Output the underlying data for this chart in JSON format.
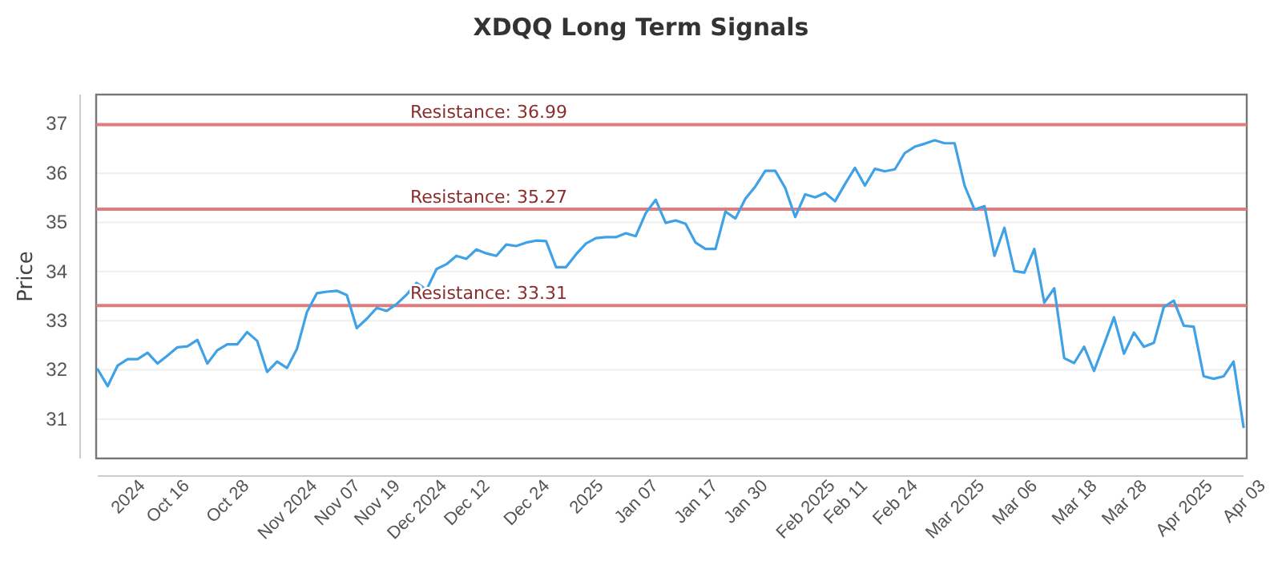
{
  "chart_data": {
    "type": "line",
    "title": "XDQQ Long Term Signals",
    "ylabel": "Price",
    "categories": [
      null,
      null,
      null,
      "2024",
      null,
      null,
      null,
      "Oct 16",
      null,
      null,
      null,
      null,
      null,
      "Oct 28",
      null,
      null,
      null,
      null,
      null,
      "Nov 2024",
      null,
      null,
      null,
      null,
      "Nov 07",
      null,
      null,
      null,
      "Nov 19",
      null,
      null,
      null,
      "Dec 2024",
      null,
      null,
      null,
      null,
      "Dec 12",
      null,
      null,
      null,
      null,
      null,
      "Dec 24",
      null,
      null,
      null,
      null,
      null,
      "2025",
      null,
      null,
      null,
      null,
      "Jan 07",
      null,
      null,
      null,
      null,
      null,
      "Jan 17",
      null,
      null,
      null,
      null,
      "Jan 30",
      null,
      null,
      null,
      null,
      null,
      "Feb 2025",
      null,
      null,
      null,
      "Feb 11",
      null,
      null,
      null,
      null,
      "Feb 24",
      null,
      null,
      null,
      null,
      null,
      "Mar 2025",
      null,
      null,
      null,
      null,
      null,
      "Mar 06",
      null,
      null,
      null,
      null,
      null,
      "Mar 18",
      null,
      null,
      null,
      null,
      "Mar 28",
      null,
      null,
      null,
      null,
      null,
      "Apr 2025",
      null,
      null,
      null,
      null,
      null,
      "Apr 03"
    ],
    "series": [
      {
        "color": "#3fa1e6",
        "values": [
          32.01,
          31.67,
          32.09,
          32.22,
          32.22,
          32.35,
          32.13,
          32.29,
          32.46,
          32.48,
          32.61,
          32.13,
          32.4,
          32.52,
          32.52,
          32.77,
          32.59,
          31.96,
          32.17,
          32.04,
          32.43,
          33.18,
          33.56,
          33.59,
          33.61,
          33.52,
          32.85,
          33.04,
          33.26,
          33.2,
          33.34,
          33.53,
          33.77,
          33.63,
          34.05,
          34.15,
          34.32,
          34.26,
          34.45,
          34.37,
          34.32,
          34.55,
          34.52,
          34.59,
          34.63,
          34.62,
          34.09,
          34.09,
          34.35,
          34.57,
          34.68,
          34.7,
          34.7,
          34.78,
          34.72,
          35.19,
          35.46,
          34.99,
          35.04,
          34.97,
          34.59,
          34.46,
          34.46,
          35.22,
          35.08,
          35.48,
          35.73,
          36.05,
          36.05,
          35.7,
          35.11,
          35.57,
          35.51,
          35.6,
          35.43,
          35.78,
          36.11,
          35.75,
          36.09,
          36.04,
          36.08,
          36.41,
          36.54,
          36.6,
          36.67,
          36.61,
          36.61,
          35.75,
          35.26,
          35.33,
          34.32,
          34.89,
          34.01,
          33.98,
          34.46,
          33.37,
          33.66,
          32.24,
          32.14,
          32.47,
          31.98,
          32.52,
          33.07,
          32.33,
          32.76,
          32.47,
          32.55,
          33.28,
          33.41,
          32.9,
          32.88,
          31.87,
          31.82,
          31.87,
          32.17,
          30.84
        ]
      }
    ],
    "ylim": [
      30.2,
      37.6
    ],
    "yticks": [
      31,
      32,
      33,
      34,
      35,
      36,
      37
    ],
    "grid": "y",
    "ref_lines": [
      {
        "axis": "y",
        "value": 36.99,
        "label": "Resistance: 36.99",
        "color": "#e07c7c"
      },
      {
        "axis": "y",
        "value": 35.27,
        "label": "Resistance: 35.27",
        "color": "#e07c7c"
      },
      {
        "axis": "y",
        "value": 33.31,
        "label": "Resistance: 33.31",
        "color": "#e07c7c"
      }
    ]
  }
}
